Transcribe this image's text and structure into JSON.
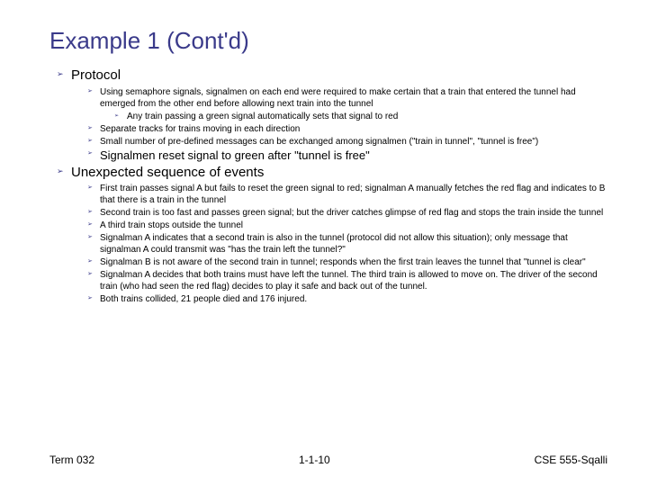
{
  "title": "Example 1 (Cont'd)",
  "sections": [
    {
      "label": "Protocol",
      "items": [
        {
          "text": "Using semaphore signals, signalmen on each end were required to make certain that a train that entered the tunnel had emerged from the other end before allowing next train into the tunnel",
          "sub": [
            {
              "text": "Any train passing a green signal automatically sets that signal to red"
            }
          ]
        },
        {
          "text": "Separate tracks for trains moving in each direction"
        },
        {
          "text": "Small number of pre-defined messages can be exchanged among signalmen (\"train in tunnel\", \"tunnel is free\")"
        },
        {
          "text": "Signalmen reset signal to green after \"tunnel is free\"",
          "emph": true
        }
      ]
    },
    {
      "label": "Unexpected sequence of events",
      "items": [
        {
          "text": "First train passes signal A but fails to reset the green signal to red; signalman A manually fetches the red flag and indicates to B that there is a train in the tunnel"
        },
        {
          "text": "Second train is too fast and passes green signal; but the driver catches glimpse of red flag and stops the train inside the tunnel"
        },
        {
          "text": "A third train stops outside the tunnel"
        },
        {
          "text": "Signalman A indicates that a second train is also in the tunnel (protocol did not allow this situation); only message that signalman A could transmit was \"has the train left the tunnel?\""
        },
        {
          "text": "Signalman B is not aware of the second train in tunnel; responds when the first train leaves the tunnel that \"tunnel is clear\""
        },
        {
          "text": "Signalman A decides that both trains must have left the tunnel. The third train is allowed to move on. The driver of the second train (who had seen the red flag) decides to play it safe and back out of the tunnel."
        },
        {
          "text": "Both trains collided, 21 people died and 176 injured."
        }
      ]
    }
  ],
  "footer": {
    "left": "Term 032",
    "center": "1-1-10",
    "right": "CSE 555-Sqalli"
  },
  "bullets": {
    "l1": "➢",
    "l2": "➢",
    "l3": "➢"
  }
}
